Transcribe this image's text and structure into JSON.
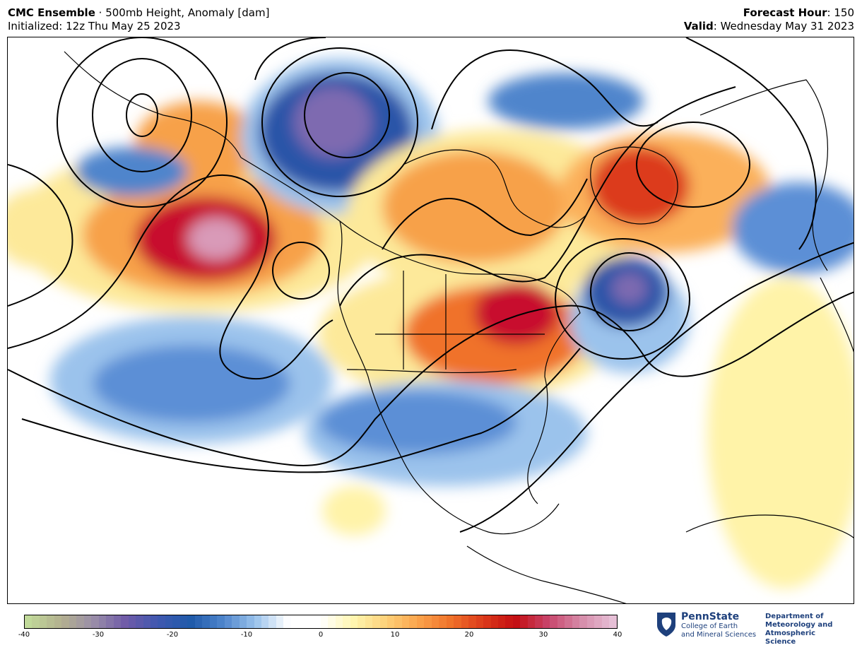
{
  "header": {
    "model": "CMC Ensemble",
    "separator": " · ",
    "product": "500mb Height, Anomaly [dam]",
    "initialized": "Initialized: 12z Thu May 25 2023",
    "forecast_hour_label": "Forecast Hour",
    "forecast_hour_value": ": 150",
    "valid_label": "Valid",
    "valid_value": ": Wednesday May 31 2023"
  },
  "colorbar": {
    "min": -40,
    "max": 40,
    "ticks": [
      "-40",
      "-30",
      "-20",
      "-10",
      "0",
      "10",
      "20",
      "30",
      "40"
    ],
    "stops": [
      "#c1da9a",
      "#b3b08f",
      "#9a8ea8",
      "#6f5aa8",
      "#3f58b0",
      "#1f5aaa",
      "#4f85cc",
      "#9bc3ec",
      "#ffffff",
      "#ffffff",
      "#fff6b0",
      "#fdd27a",
      "#fba44c",
      "#f0722a",
      "#dc3a1a",
      "#c40e12",
      "#c8446a",
      "#d68aa8",
      "#e6bfd6"
    ]
  },
  "logo": {
    "name": "PennState",
    "college_line1": "College of Earth",
    "college_line2": "and Mineral Sciences",
    "dept_line1": "Department of",
    "dept_line2": "Meteorology and",
    "dept_line3": "Atmospheric Science"
  },
  "colors": {
    "positive_strong": "#c8102e",
    "positive_mid": "#f0722a",
    "positive_weak": "#fde99a",
    "negative_strong": "#2c55a8",
    "negative_mid": "#5b8fd6",
    "negative_weak": "#a9cdf0",
    "negative_core": "#7e6bb0",
    "positive_core": "#d99ab8"
  }
}
